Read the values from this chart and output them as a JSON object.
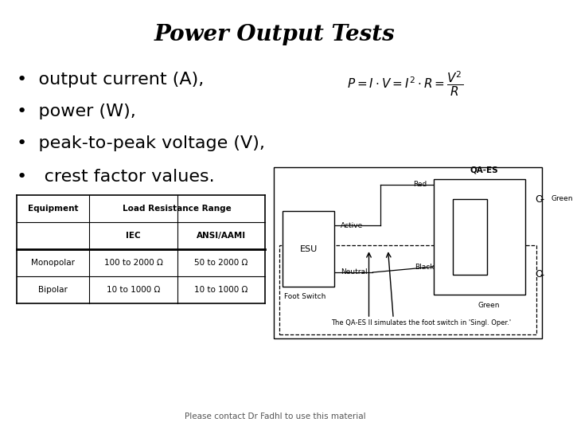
{
  "title": "Power Output Tests",
  "bullet_points": [
    "output current (A),",
    "power (W),",
    "peak-to-peak voltage (V),",
    " crest factor values."
  ],
  "formula": "$P = I \\cdot V = I^2 \\cdot R = \\dfrac{V^2}{R}$",
  "table_subheaders": [
    "",
    "IEC",
    "ANSI/AAMI"
  ],
  "table_rows": [
    [
      "Monopolar",
      "100 to 2000 Ω",
      "50 to 2000 Ω"
    ],
    [
      "Bipolar",
      "10 to 1000 Ω",
      "10 to 1000 Ω"
    ]
  ],
  "footer": "Please contact Dr Fadhl to use this material",
  "bg_color": "#ffffff",
  "text_color": "#000000",
  "title_fontsize": 20,
  "bullet_fontsize": 16
}
